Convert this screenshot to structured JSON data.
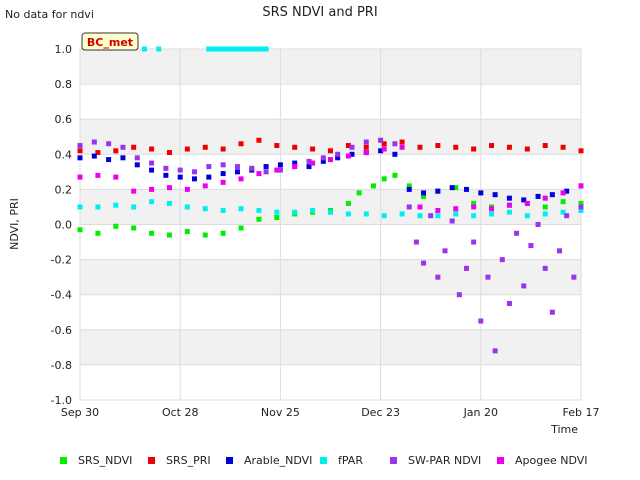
{
  "notice": "No data for ndvi",
  "chart_data": {
    "type": "scatter",
    "title": "SRS NDVI and PRI",
    "site_label": "BC_met",
    "xlabel": "Time",
    "ylabel": "NDVI, PRI",
    "ylim": [
      -1.0,
      1.0
    ],
    "yticks": [
      -1.0,
      -0.8,
      -0.6,
      -0.4,
      -0.2,
      0.0,
      0.2,
      0.4,
      0.6,
      0.8,
      1.0
    ],
    "ytick_labels": [
      "-1.0",
      "-0.8",
      "-0.6",
      "-0.4",
      "-0.2",
      "0.0",
      "0.2",
      "0.4",
      "0.6",
      "0.8",
      "1.0"
    ],
    "xlim_days": [
      0,
      140
    ],
    "xticks_days": [
      0,
      28,
      56,
      84,
      112,
      140
    ],
    "xtick_labels": [
      "Sep 30",
      "Oct 28",
      "Nov 25",
      "Dec 23",
      "Jan 20",
      "Feb 17"
    ],
    "grid": true,
    "legend_position": "bottom",
    "series": [
      {
        "name": "SRS_NDVI",
        "color": "#00ee00",
        "x": [
          0,
          5,
          10,
          15,
          20,
          25,
          30,
          35,
          40,
          45,
          50,
          55,
          60,
          65,
          70,
          75,
          78,
          82,
          85,
          88,
          92,
          96,
          100,
          105,
          110,
          115,
          120,
          125,
          130,
          135,
          140
        ],
        "y": [
          -0.03,
          -0.05,
          -0.01,
          -0.02,
          -0.05,
          -0.06,
          -0.04,
          -0.06,
          -0.05,
          -0.02,
          0.03,
          0.04,
          0.06,
          0.07,
          0.08,
          0.12,
          0.18,
          0.22,
          0.26,
          0.28,
          0.22,
          0.16,
          0.19,
          0.21,
          0.12,
          0.1,
          0.11,
          0.12,
          0.1,
          0.13,
          0.12
        ]
      },
      {
        "name": "SRS_PRI",
        "color": "#ee0000",
        "x": [
          0,
          5,
          10,
          15,
          20,
          25,
          30,
          35,
          40,
          45,
          50,
          55,
          60,
          65,
          70,
          75,
          80,
          85,
          90,
          95,
          100,
          105,
          110,
          115,
          120,
          125,
          130,
          135,
          140
        ],
        "y": [
          0.42,
          0.41,
          0.42,
          0.44,
          0.43,
          0.41,
          0.43,
          0.44,
          0.43,
          0.46,
          0.48,
          0.45,
          0.44,
          0.43,
          0.42,
          0.45,
          0.44,
          0.46,
          0.47,
          0.44,
          0.45,
          0.44,
          0.43,
          0.45,
          0.44,
          0.43,
          0.45,
          0.44,
          0.42
        ]
      },
      {
        "name": "Arable_NDVI",
        "color": "#0000dd",
        "x": [
          0,
          4,
          8,
          12,
          16,
          20,
          24,
          28,
          32,
          36,
          40,
          44,
          48,
          52,
          56,
          60,
          64,
          68,
          72,
          76,
          80,
          84,
          88,
          92,
          96,
          100,
          104,
          108,
          112,
          116,
          120,
          124,
          128,
          132,
          136,
          140
        ],
        "y": [
          0.38,
          0.39,
          0.37,
          0.38,
          0.34,
          0.31,
          0.28,
          0.27,
          0.26,
          0.27,
          0.29,
          0.3,
          0.31,
          0.33,
          0.34,
          0.35,
          0.33,
          0.36,
          0.38,
          0.4,
          0.41,
          0.42,
          0.4,
          0.2,
          0.18,
          0.19,
          0.21,
          0.2,
          0.18,
          0.17,
          0.15,
          0.14,
          0.16,
          0.17,
          0.19,
          0.22
        ]
      },
      {
        "name": "fPAR",
        "color": "#00eeee",
        "x": [
          0,
          5,
          10,
          15,
          20,
          25,
          30,
          35,
          40,
          45,
          50,
          55,
          60,
          65,
          70,
          75,
          80,
          85,
          90,
          95,
          100,
          105,
          110,
          115,
          120,
          125,
          130,
          135,
          140
        ],
        "y": [
          0.1,
          0.1,
          0.11,
          0.1,
          0.13,
          0.12,
          0.1,
          0.09,
          0.08,
          0.09,
          0.08,
          0.07,
          0.07,
          0.08,
          0.07,
          0.06,
          0.06,
          0.05,
          0.06,
          0.05,
          0.05,
          0.06,
          0.05,
          0.06,
          0.07,
          0.05,
          0.06,
          0.07,
          0.08
        ]
      },
      {
        "name": "SW-PAR NDVI",
        "color": "#9933ee",
        "x": [
          0,
          4,
          8,
          12,
          16,
          20,
          24,
          28,
          32,
          36,
          40,
          44,
          48,
          52,
          56,
          60,
          64,
          68,
          72,
          76,
          80,
          84,
          88,
          92,
          94,
          96,
          98,
          100,
          102,
          104,
          106,
          108,
          110,
          112,
          114,
          116,
          118,
          120,
          122,
          124,
          126,
          128,
          130,
          132,
          134,
          136,
          138,
          140
        ],
        "y": [
          0.45,
          0.47,
          0.46,
          0.44,
          0.38,
          0.35,
          0.32,
          0.31,
          0.3,
          0.33,
          0.34,
          0.33,
          0.32,
          0.3,
          0.31,
          0.33,
          0.36,
          0.38,
          0.4,
          0.44,
          0.47,
          0.48,
          0.46,
          0.1,
          -0.1,
          -0.22,
          0.05,
          -0.3,
          -0.15,
          0.02,
          -0.4,
          -0.25,
          -0.1,
          -0.55,
          -0.3,
          -0.72,
          -0.2,
          -0.45,
          -0.05,
          -0.35,
          -0.12,
          0.0,
          -0.25,
          -0.5,
          -0.15,
          0.05,
          -0.3,
          0.1
        ]
      },
      {
        "name": "Apogee NDVI",
        "color": "#ee00ee",
        "x": [
          0,
          5,
          10,
          15,
          20,
          25,
          30,
          35,
          40,
          45,
          50,
          55,
          60,
          65,
          70,
          75,
          80,
          85,
          90,
          95,
          100,
          105,
          110,
          115,
          120,
          125,
          130,
          135,
          140
        ],
        "y": [
          0.27,
          0.28,
          0.27,
          0.19,
          0.2,
          0.21,
          0.2,
          0.22,
          0.24,
          0.26,
          0.29,
          0.31,
          0.33,
          0.35,
          0.37,
          0.39,
          0.41,
          0.43,
          0.44,
          0.1,
          0.08,
          0.09,
          0.1,
          0.09,
          0.11,
          0.12,
          0.15,
          0.18,
          0.22
        ]
      }
    ],
    "fpar_high_cluster": {
      "x": [
        18,
        22,
        36,
        37,
        38,
        39,
        40,
        41,
        42,
        43,
        44,
        45,
        46,
        47,
        48,
        49,
        50,
        51,
        52
      ],
      "y": [
        1.0,
        1.0,
        1.0,
        1.0,
        1.0,
        1.0,
        1.0,
        1.0,
        1.0,
        1.0,
        1.0,
        1.0,
        1.0,
        1.0,
        1.0,
        1.0,
        1.0,
        1.0,
        1.0
      ]
    }
  }
}
